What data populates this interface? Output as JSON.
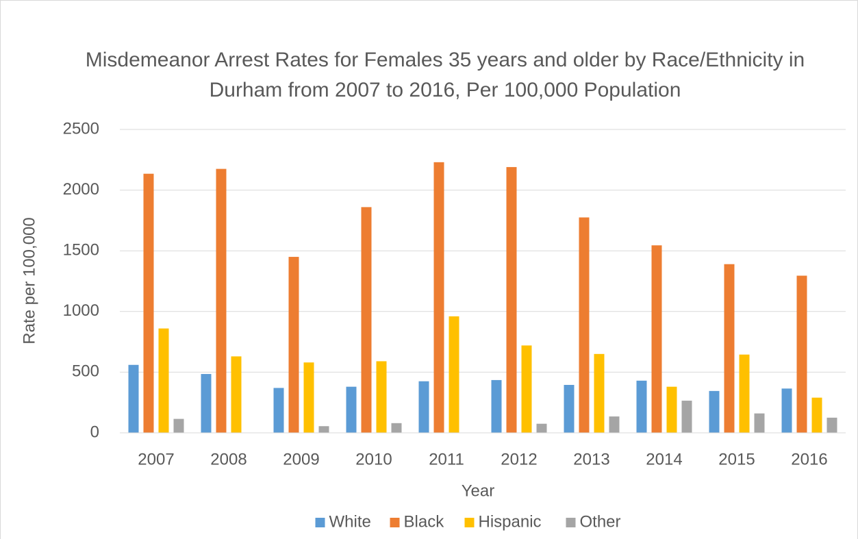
{
  "chart_data": {
    "type": "bar",
    "title": "Misdemeanor Arrest Rates for  Females 35 years and older by Race/Ethnicity in Durham from 2007 to 2016, Per 100,000 Population",
    "x_label": "Year",
    "y_label": "Rate per 100,000",
    "categories": [
      "2007",
      "2008",
      "2009",
      "2010",
      "2011",
      "2012",
      "2013",
      "2014",
      "2015",
      "2016"
    ],
    "series": [
      {
        "name": "White",
        "color": "#5b9bd5",
        "values": [
          560,
          485,
          370,
          380,
          425,
          435,
          395,
          430,
          345,
          365
        ]
      },
      {
        "name": "Black",
        "color": "#ed7d31",
        "values": [
          2135,
          2175,
          1450,
          1860,
          2230,
          2190,
          1775,
          1545,
          1390,
          1295
        ]
      },
      {
        "name": "Hispanic",
        "color": "#ffc000",
        "values": [
          860,
          630,
          580,
          590,
          960,
          720,
          650,
          380,
          645,
          290
        ]
      },
      {
        "name": "Other",
        "color": "#a5a5a5",
        "values": [
          115,
          0,
          55,
          80,
          0,
          75,
          135,
          265,
          160,
          125
        ]
      }
    ],
    "ylim": [
      0,
      2500
    ],
    "yticks": [
      0,
      500,
      1000,
      1500,
      2000,
      2500
    ],
    "grid": true,
    "legend": "bottom"
  }
}
